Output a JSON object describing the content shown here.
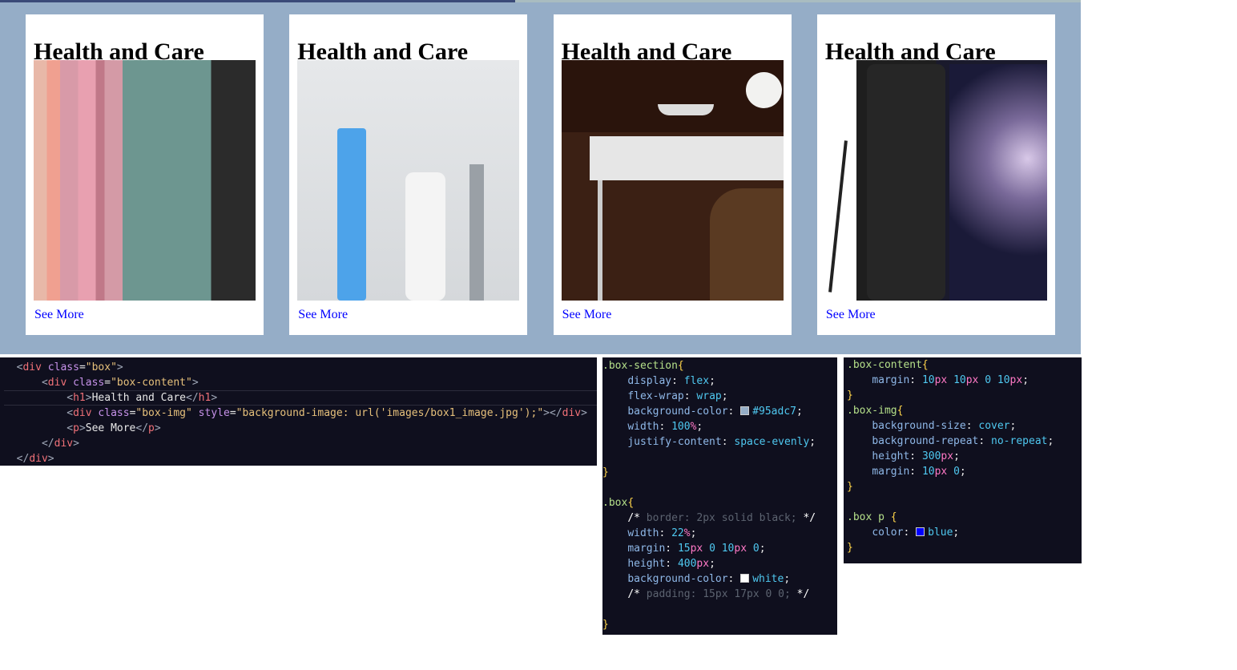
{
  "cards": [
    {
      "title": "Health and Care",
      "link": "See More"
    },
    {
      "title": "Health and Care",
      "link": "See More"
    },
    {
      "title": "Health and Care",
      "link": "See More"
    },
    {
      "title": "Health and Care",
      "link": "See More"
    }
  ],
  "code_panels": [
    {
      "language": "html",
      "lines": [
        "  <div class=\"box\">",
        "      <div class=\"box-content\">",
        "          <h1>Health and Care</h1>",
        "          <div class=\"box-img\" style=\"background-image: url('images/box1_image.jpg');\"></div>",
        "          <p>See More</p>",
        "      </div>",
        "  </div>"
      ]
    },
    {
      "language": "css",
      "lines": [
        ".box-section{",
        "    display: flex;",
        "    flex-wrap: wrap;",
        "    background-color: #95adc7;",
        "    width: 100%;",
        "    justify-content: space-evenly;",
        null,
        "}",
        null,
        ".box{",
        "    /* border: 2px solid black; */",
        "    width: 22%;",
        "    margin: 15px 0 10px 0;",
        "    height: 400px;",
        "    background-color: white;",
        "    /* padding: 15px 17px 0 0; */",
        null,
        "}"
      ]
    },
    {
      "language": "css",
      "lines": [
        ".box-content{",
        "    margin: 10px 10px 0 10px;",
        "}",
        ".box-img{",
        "    background-size: cover;",
        "    background-repeat: no-repeat;",
        "    height: 300px;",
        "    margin: 10px 0;",
        "}",
        null,
        ".box p {",
        "    color: blue;",
        "}"
      ]
    }
  ]
}
